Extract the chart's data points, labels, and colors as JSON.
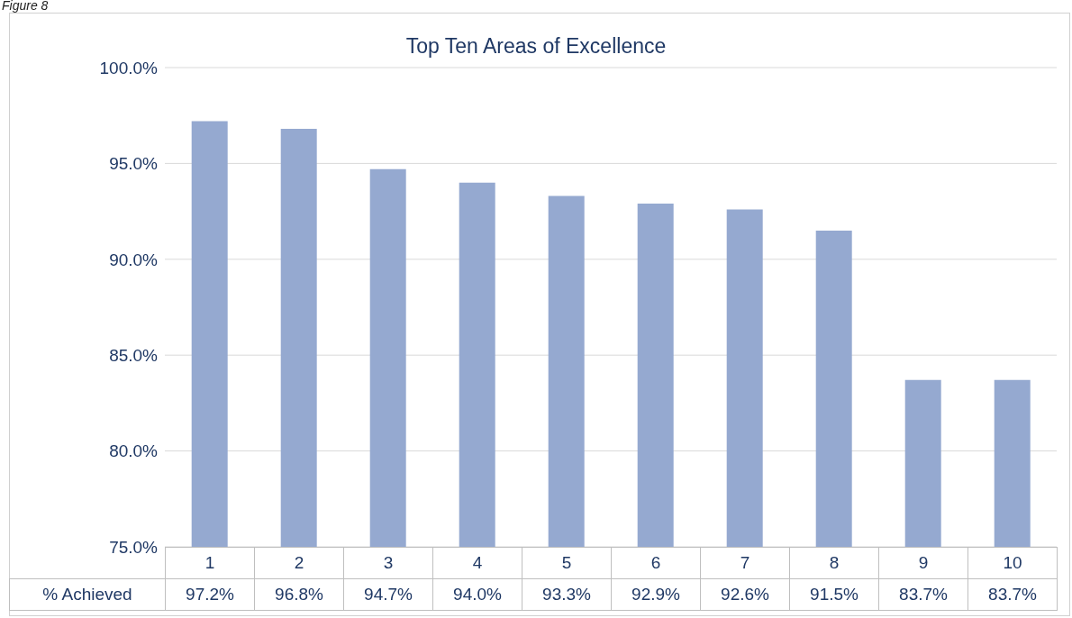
{
  "chart_data": {
    "type": "bar",
    "title": "Top Ten Areas of Excellence",
    "annotations": [
      "Figure 8"
    ],
    "categories": [
      "1",
      "2",
      "3",
      "4",
      "5",
      "6",
      "7",
      "8",
      "9",
      "10"
    ],
    "series": [
      {
        "name": "% Achieved",
        "color": "#95a9d0",
        "values": [
          97.2,
          96.8,
          94.7,
          94.0,
          93.3,
          92.9,
          92.6,
          91.5,
          83.7,
          83.7
        ],
        "value_labels": [
          "97.2%",
          "96.8%",
          "94.7%",
          "94.0%",
          "93.3%",
          "92.9%",
          "92.6%",
          "91.5%",
          "83.7%",
          "83.7%"
        ]
      }
    ],
    "ylim": [
      75,
      100
    ],
    "yticks": [
      {
        "value": 75,
        "label": "75.0%"
      },
      {
        "value": 80,
        "label": "80.0%"
      },
      {
        "value": 85,
        "label": "85.0%"
      },
      {
        "value": 90,
        "label": "90.0%"
      },
      {
        "value": 95,
        "label": "95.0%"
      },
      {
        "value": 100,
        "label": "100.0%"
      }
    ],
    "grid": "y"
  }
}
